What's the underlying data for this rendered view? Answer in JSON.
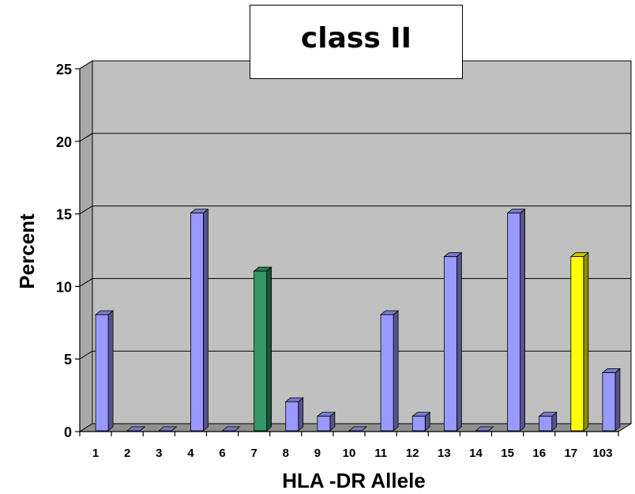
{
  "chart_data": {
    "type": "bar",
    "title": "class II",
    "xlabel": "HLA -DR Allele",
    "ylabel": "Percent",
    "ylim": [
      0,
      25
    ],
    "yticks": [
      0,
      5,
      10,
      15,
      20,
      25
    ],
    "grid": true,
    "categories": [
      "1",
      "2",
      "3",
      "4",
      "6",
      "7",
      "8",
      "9",
      "10",
      "11",
      "12",
      "13",
      "14",
      "15",
      "16",
      "17",
      "103"
    ],
    "values": [
      8,
      0,
      0,
      15,
      0,
      11,
      2,
      1,
      0,
      8,
      1,
      12,
      0,
      15,
      1,
      12,
      4
    ],
    "bar_colors": [
      "#9999ff",
      "#9999ff",
      "#9999ff",
      "#9999ff",
      "#9999ff",
      "#339966",
      "#9999ff",
      "#9999ff",
      "#9999ff",
      "#9999ff",
      "#9999ff",
      "#9999ff",
      "#9999ff",
      "#9999ff",
      "#9999ff",
      "#ffff00",
      "#9999ff"
    ],
    "wall_color": "#c0c0c0"
  }
}
